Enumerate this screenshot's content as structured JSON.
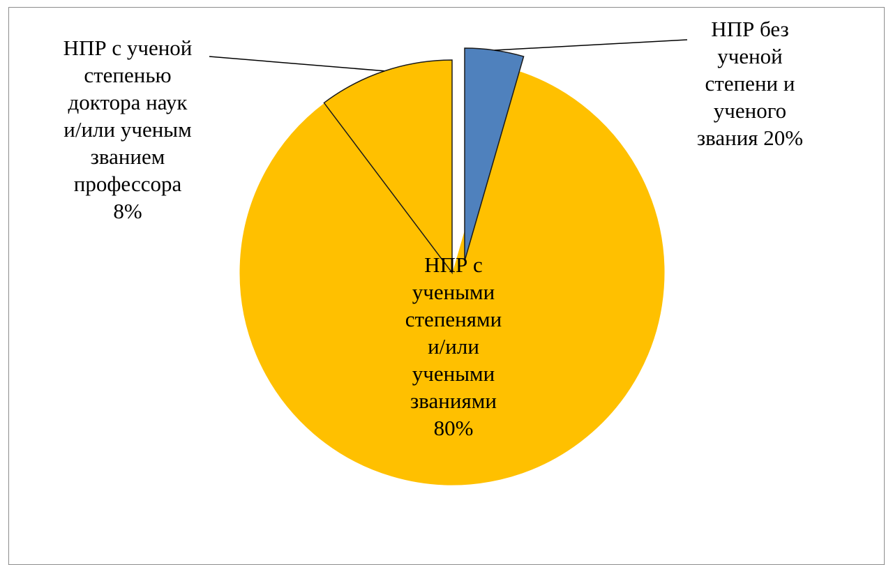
{
  "chart_data": {
    "type": "pie",
    "slices": [
      {
        "label_lines": [
          "НПР без",
          "ученой",
          "степени и",
          "ученого",
          "звания  20%"
        ],
        "value": 20,
        "label_text": "20%",
        "color": "#4f81bd",
        "exploded": true
      },
      {
        "label_lines": [
          "НПР с ученой",
          "степенью",
          "доктора наук",
          "и/или ученым",
          "званием",
          "профессора",
          "8%"
        ],
        "value": 8,
        "label_text": "8%",
        "color": "#ffc000",
        "exploded": false
      },
      {
        "label_lines": [
          "НПР с",
          "учеными",
          "степенями",
          "и/или",
          "учеными",
          "званиями",
          "80%"
        ],
        "value": 80,
        "label_text": "80%",
        "color": "#ffc000",
        "exploded": false
      }
    ],
    "legend": "none"
  }
}
